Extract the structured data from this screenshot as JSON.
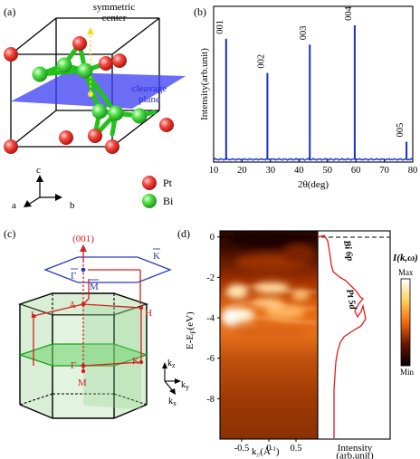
{
  "panels": {
    "a": {
      "label": "(a)",
      "symmetric_center": [
        "symmetric",
        "center"
      ],
      "cleavage_plane": [
        "cleavage",
        "plane"
      ],
      "axes": {
        "c": "c",
        "a": "a",
        "b": "b"
      },
      "legend": [
        {
          "name": "Pt",
          "color": "#e8302a"
        },
        {
          "name": "Bi",
          "color": "#3fd83a"
        }
      ]
    },
    "b": {
      "label": "(b)",
      "chart_data": {
        "type": "line",
        "title": "",
        "xlabel": "2θ(deg)",
        "ylabel": "Intensity(arb.unit)",
        "xlim": [
          10,
          80
        ],
        "xticks": [
          10,
          20,
          30,
          40,
          50,
          60,
          70,
          80
        ],
        "series": [
          {
            "color": "#1a2fc9",
            "peaks": [
              {
                "label": "001",
                "x": 14.4,
                "height": 0.82
              },
              {
                "label": "002",
                "x": 28.9,
                "height": 0.59
              },
              {
                "label": "003",
                "x": 43.8,
                "height": 0.78
              },
              {
                "label": "004",
                "x": 59.6,
                "height": 0.91
              },
              {
                "label": "005",
                "x": 77.8,
                "height": 0.13
              }
            ]
          }
        ]
      }
    },
    "c": {
      "label": "(c)",
      "direction": "(001)",
      "points": {
        "gamma_bar": "Γ",
        "k_bar": "K",
        "m_bar": "M",
        "A": "A",
        "L": "L",
        "H": "H",
        "gamma": "Γ",
        "M": "M",
        "K": "K"
      },
      "axes": {
        "kz": "k",
        "kz_sub": "z",
        "ky": "k",
        "ky_sub": "y",
        "kx": "k",
        "kx_sub": "x"
      }
    },
    "d": {
      "label": "(d)",
      "chart_data": {
        "type": "heatmap",
        "ylabel": "E-E",
        "ylabel_sub": "F",
        "ylabel_unit": "(eV)",
        "xlabel": "k",
        "xlabel_sub": "//",
        "xlabel_unit": "(Å",
        "xlabel_sup": "-1",
        "xlabel_close": ")",
        "ylim": [
          -10,
          0.3
        ],
        "yticks": [
          0,
          -2,
          -4,
          -6,
          -8
        ],
        "xlim": [
          -0.9,
          0.9
        ],
        "xticks": [
          -0.5,
          0,
          0.5
        ],
        "colorbar": {
          "title": "I(k,ω)",
          "max": "Max",
          "min": "Min"
        },
        "edc": {
          "xlabel": "Intensity",
          "xlabel2": "(arb.unit)",
          "annotations": [
            "Bi 6p",
            "Pt 5d"
          ]
        }
      }
    }
  }
}
